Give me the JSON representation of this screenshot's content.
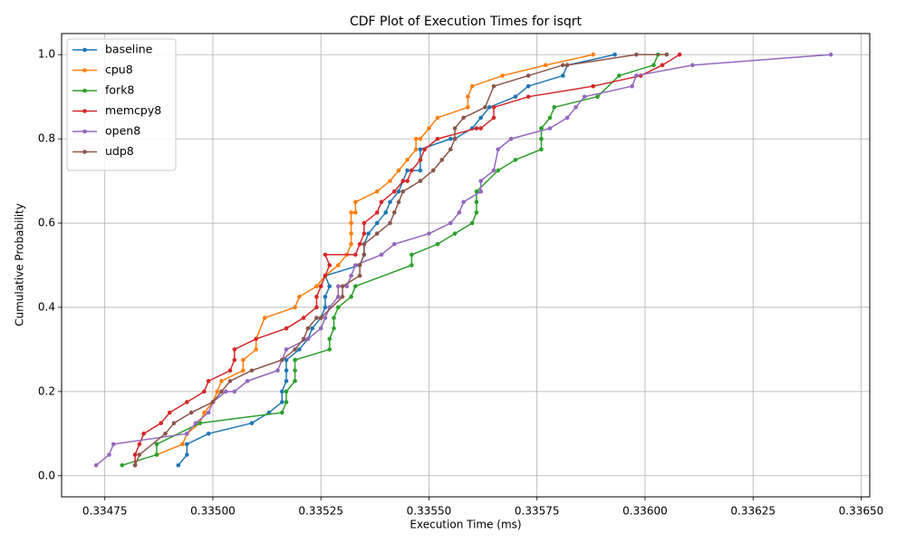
{
  "chart_data": {
    "type": "line",
    "title": "CDF Plot of Execution Times for isqrt",
    "xlabel": "Execution Time (ms)",
    "ylabel": "Cumulative Probability",
    "xlim": [
      0.33465,
      0.33652
    ],
    "ylim": [
      -0.05,
      1.05
    ],
    "grid": true,
    "legend_position": "top-left",
    "x_ticks": [
      0.33475,
      0.335,
      0.33525,
      0.3355,
      0.33575,
      0.336,
      0.33625,
      0.3365
    ],
    "x_tick_labels": [
      "0.33475",
      "0.33500",
      "0.33525",
      "0.33550",
      "0.33575",
      "0.33600",
      "0.33625",
      "0.33650"
    ],
    "y_ticks": [
      0.0,
      0.2,
      0.4,
      0.6,
      0.8,
      1.0
    ],
    "y_tick_labels": [
      "0.0",
      "0.2",
      "0.4",
      "0.6",
      "0.8",
      "1.0"
    ],
    "series": [
      {
        "name": "baseline",
        "color": "#1f77b4",
        "x": [
          0.33492,
          0.33494,
          0.33494,
          0.33499,
          0.33509,
          0.33513,
          0.33516,
          0.33516,
          0.33517,
          0.33517,
          0.33517,
          0.3352,
          0.33522,
          0.33523,
          0.33525,
          0.33526,
          0.33526,
          0.33527,
          0.33526,
          0.33534,
          0.33535,
          0.33535,
          0.33536,
          0.33538,
          0.3354,
          0.33541,
          0.33543,
          0.33544,
          0.33545,
          0.33548,
          0.33548,
          0.33555,
          0.33556,
          0.3356,
          0.33562,
          0.33564,
          0.3357,
          0.33573,
          0.33581,
          0.33582,
          0.33593
        ],
        "y": [
          0.025,
          0.05,
          0.075,
          0.1,
          0.125,
          0.15,
          0.175,
          0.2,
          0.225,
          0.25,
          0.275,
          0.3,
          0.325,
          0.35,
          0.375,
          0.4,
          0.425,
          0.45,
          0.475,
          0.5,
          0.525,
          0.55,
          0.575,
          0.6,
          0.625,
          0.65,
          0.675,
          0.7,
          0.725,
          0.725,
          0.775,
          0.8,
          0.8,
          0.825,
          0.85,
          0.875,
          0.9,
          0.925,
          0.95,
          0.975,
          1.0
        ]
      },
      {
        "name": "cpu8",
        "color": "#ff7f0e",
        "x": [
          0.33487,
          0.33493,
          0.33494,
          0.33497,
          0.33498,
          0.335,
          0.33501,
          0.33502,
          0.33507,
          0.33507,
          0.3351,
          0.3351,
          0.33512,
          0.33519,
          0.3352,
          0.33524,
          0.33526,
          0.33529,
          0.33531,
          0.33532,
          0.33532,
          0.33532,
          0.33532,
          0.33533,
          0.33533,
          0.33538,
          0.33541,
          0.33543,
          0.33545,
          0.33547,
          0.33547,
          0.33548,
          0.3355,
          0.33552,
          0.33559,
          0.33559,
          0.33559,
          0.3356,
          0.33567,
          0.33577,
          0.33588
        ],
        "y": [
          0.05,
          0.075,
          0.1,
          0.125,
          0.15,
          0.175,
          0.2,
          0.225,
          0.25,
          0.275,
          0.3,
          0.325,
          0.375,
          0.4,
          0.425,
          0.45,
          0.475,
          0.5,
          0.525,
          0.55,
          0.575,
          0.6,
          0.625,
          0.625,
          0.65,
          0.675,
          0.7,
          0.725,
          0.75,
          0.775,
          0.8,
          0.8,
          0.825,
          0.85,
          0.875,
          0.9,
          0.9,
          0.925,
          0.95,
          0.975,
          1.0
        ]
      },
      {
        "name": "fork8",
        "color": "#2ca02c",
        "x": [
          0.33479,
          0.33487,
          0.33487,
          0.33497,
          0.33516,
          0.33517,
          0.33517,
          0.33519,
          0.33519,
          0.33519,
          0.33519,
          0.33527,
          0.33527,
          0.33528,
          0.33528,
          0.33529,
          0.33532,
          0.33533,
          0.33546,
          0.33546,
          0.33552,
          0.33556,
          0.3356,
          0.33561,
          0.33561,
          0.33561,
          0.33566,
          0.3357,
          0.33576,
          0.33576,
          0.33576,
          0.33576,
          0.33578,
          0.33579,
          0.33589,
          0.33594,
          0.33602,
          0.33603
        ],
        "y": [
          0.025,
          0.05,
          0.075,
          0.125,
          0.15,
          0.175,
          0.2,
          0.225,
          0.25,
          0.275,
          0.275,
          0.3,
          0.325,
          0.35,
          0.375,
          0.4,
          0.425,
          0.45,
          0.5,
          0.525,
          0.55,
          0.575,
          0.6,
          0.625,
          0.65,
          0.675,
          0.725,
          0.75,
          0.775,
          0.8,
          0.825,
          0.825,
          0.85,
          0.875,
          0.9,
          0.95,
          0.975,
          1.0
        ]
      },
      {
        "name": "memcpy8",
        "color": "#d62728",
        "x": [
          0.33482,
          0.33482,
          0.33483,
          0.33484,
          0.33488,
          0.3349,
          0.33494,
          0.33498,
          0.33499,
          0.33504,
          0.33505,
          0.33505,
          0.3351,
          0.33517,
          0.33521,
          0.33524,
          0.33524,
          0.33525,
          0.33526,
          0.33527,
          0.33526,
          0.33533,
          0.33534,
          0.33535,
          0.33535,
          0.33538,
          0.33539,
          0.33542,
          0.33544,
          0.33545,
          0.33546,
          0.33548,
          0.33549,
          0.33552,
          0.33561,
          0.33562,
          0.33565,
          0.33565,
          0.33573,
          0.33588,
          0.33599,
          0.33604,
          0.33608
        ],
        "y": [
          0.025,
          0.05,
          0.075,
          0.1,
          0.125,
          0.15,
          0.175,
          0.2,
          0.225,
          0.25,
          0.275,
          0.3,
          0.325,
          0.35,
          0.375,
          0.4,
          0.425,
          0.45,
          0.475,
          0.5,
          0.525,
          0.525,
          0.55,
          0.575,
          0.6,
          0.625,
          0.65,
          0.675,
          0.7,
          0.7,
          0.725,
          0.75,
          0.775,
          0.8,
          0.825,
          0.825,
          0.85,
          0.875,
          0.9,
          0.925,
          0.95,
          0.975,
          1.0
        ]
      },
      {
        "name": "open8",
        "color": "#9467bd",
        "x": [
          0.33473,
          0.33476,
          0.33477,
          0.33494,
          0.33496,
          0.33499,
          0.335,
          0.33503,
          0.33505,
          0.33508,
          0.33515,
          0.33517,
          0.33522,
          0.33525,
          0.33526,
          0.33527,
          0.33527,
          0.33529,
          0.33529,
          0.33531,
          0.33532,
          0.33533,
          0.33539,
          0.33542,
          0.3355,
          0.33555,
          0.33557,
          0.33558,
          0.33562,
          0.33562,
          0.33562,
          0.33565,
          0.33566,
          0.33569,
          0.33578,
          0.33582,
          0.33584,
          0.33586,
          0.33597,
          0.33598,
          0.33611,
          0.33643
        ],
        "y": [
          0.025,
          0.05,
          0.075,
          0.1,
          0.125,
          0.15,
          0.175,
          0.2,
          0.2,
          0.225,
          0.25,
          0.3,
          0.325,
          0.35,
          0.375,
          0.4,
          0.4,
          0.425,
          0.45,
          0.45,
          0.475,
          0.5,
          0.525,
          0.55,
          0.575,
          0.6,
          0.625,
          0.65,
          0.675,
          0.675,
          0.7,
          0.725,
          0.775,
          0.8,
          0.825,
          0.85,
          0.875,
          0.9,
          0.925,
          0.95,
          0.975,
          1.0
        ]
      },
      {
        "name": "udp8",
        "color": "#8c564b",
        "x": [
          0.33482,
          0.33483,
          0.33489,
          0.33491,
          0.33495,
          0.335,
          0.33502,
          0.33504,
          0.33509,
          0.33516,
          0.33519,
          0.33521,
          0.33522,
          0.33524,
          0.33525,
          0.3353,
          0.3353,
          0.33534,
          0.33534,
          0.33535,
          0.33535,
          0.33538,
          0.33541,
          0.33542,
          0.33543,
          0.33544,
          0.33548,
          0.33551,
          0.33553,
          0.33555,
          0.33556,
          0.33556,
          0.33558,
          0.33563,
          0.33565,
          0.33573,
          0.33581,
          0.33582,
          0.33598,
          0.33605
        ],
        "y": [
          0.025,
          0.05,
          0.1,
          0.125,
          0.15,
          0.175,
          0.2,
          0.225,
          0.25,
          0.275,
          0.3,
          0.325,
          0.35,
          0.375,
          0.375,
          0.425,
          0.45,
          0.475,
          0.5,
          0.525,
          0.55,
          0.575,
          0.6,
          0.625,
          0.65,
          0.675,
          0.7,
          0.725,
          0.75,
          0.775,
          0.8,
          0.825,
          0.85,
          0.875,
          0.925,
          0.95,
          0.975,
          0.975,
          1.0,
          1.0
        ]
      }
    ]
  }
}
